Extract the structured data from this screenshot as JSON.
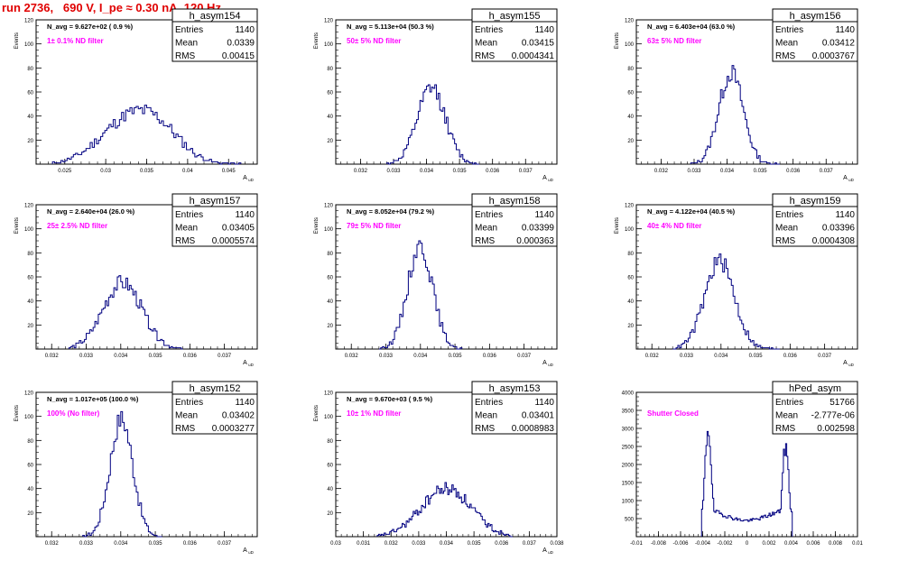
{
  "page_title": "run 2736,   690 V, I_pe ≈ 0.30 nA, 120 Hz",
  "colors": {
    "histogram": "#000080",
    "annotation": "#ff00ff",
    "title": "#e00000",
    "frame": "#000000"
  },
  "chart_data": [
    {
      "type": "bar",
      "name": "h_asym154",
      "title": "N_avg = 9.627e+02 ( 0.9 %)",
      "annotation": "1± 0.1% ND filter",
      "xlabel": "A_{uD}",
      "ylabel": "Events",
      "stats": {
        "entries_label": "Entries",
        "entries": "1140",
        "mean_label": "Mean",
        "mean": "0.0339",
        "rms_label": "RMS",
        "rms": "0.00415"
      },
      "xlim": [
        0.0215,
        0.0485
      ],
      "ylim": [
        0,
        120
      ],
      "xticks": [
        "0.025",
        "0.03",
        "0.035",
        "0.04",
        "0.045"
      ],
      "xtick_values": [
        0.025,
        0.03,
        0.035,
        0.04,
        0.045
      ],
      "yticks": [
        "20",
        "40",
        "60",
        "80",
        "100",
        "120"
      ],
      "ytick_values": [
        20,
        40,
        60,
        80,
        100,
        120
      ],
      "peaks": [
        [
          0.0325,
          0.0035,
          32
        ],
        [
          0.0365,
          0.003,
          22
        ]
      ],
      "range": [
        0.0235,
        0.0465
      ],
      "nbins": 90,
      "seed": 11
    },
    {
      "type": "bar",
      "name": "h_asym155",
      "title": "N_avg = 5.113e+04 (50.3 %)",
      "annotation": "50± 5% ND filter",
      "xlabel": "A_{uD}",
      "ylabel": "Events",
      "stats": {
        "entries_label": "Entries",
        "entries": "1140",
        "mean_label": "Mean",
        "mean": "0.03415",
        "rms_label": "RMS",
        "rms": "0.0004341"
      },
      "xlim": [
        0.03125,
        0.03795
      ],
      "ylim": [
        0,
        120
      ],
      "xticks": [
        "0.032",
        "0.033",
        "0.034",
        "0.035",
        "0.036",
        "0.037"
      ],
      "xtick_values": [
        0.032,
        0.033,
        0.034,
        0.035,
        0.036,
        0.037
      ],
      "yticks": [
        "20",
        "40",
        "60",
        "80",
        "100",
        "120"
      ],
      "ytick_values": [
        20,
        40,
        60,
        80,
        100,
        120
      ],
      "peaks": [
        [
          0.03415,
          0.00043,
          63
        ]
      ],
      "range": [
        0.0328,
        0.0356
      ],
      "nbins": 56,
      "seed": 12
    },
    {
      "type": "bar",
      "name": "h_asym156",
      "title": "N_avg = 6.403e+04 (63.0 %)",
      "annotation": "63± 5% ND filter",
      "xlabel": "A_{uD}",
      "ylabel": "Events",
      "stats": {
        "entries_label": "Entries",
        "entries": "1140",
        "mean_label": "Mean",
        "mean": "0.03412",
        "rms_label": "RMS",
        "rms": "0.0003767"
      },
      "xlim": [
        0.03125,
        0.03795
      ],
      "ylim": [
        0,
        120
      ],
      "xticks": [
        "0.032",
        "0.033",
        "0.034",
        "0.035",
        "0.036",
        "0.037"
      ],
      "xtick_values": [
        0.032,
        0.033,
        0.034,
        0.035,
        0.036,
        0.037
      ],
      "yticks": [
        "20",
        "40",
        "60",
        "80",
        "100",
        "120"
      ],
      "ytick_values": [
        20,
        40,
        60,
        80,
        100,
        120
      ],
      "peaks": [
        [
          0.03412,
          0.00037,
          76
        ]
      ],
      "range": [
        0.0329,
        0.0356
      ],
      "nbins": 54,
      "seed": 13
    },
    {
      "type": "bar",
      "name": "h_asym157",
      "title": "N_avg = 2.640e+04 (26.0 %)",
      "annotation": "25± 2.5% ND filter",
      "xlabel": "A_{uD}",
      "ylabel": "Events",
      "stats": {
        "entries_label": "Entries",
        "entries": "1140",
        "mean_label": "Mean",
        "mean": "0.03405",
        "rms_label": "RMS",
        "rms": "0.0005574"
      },
      "xlim": [
        0.03155,
        0.03795
      ],
      "ylim": [
        0,
        120
      ],
      "xticks": [
        "0.032",
        "0.033",
        "0.034",
        "0.035",
        "0.036",
        "0.037"
      ],
      "xtick_values": [
        0.032,
        0.033,
        0.034,
        0.035,
        0.036,
        0.037
      ],
      "yticks": [
        "20",
        "40",
        "60",
        "80",
        "100",
        "120"
      ],
      "ytick_values": [
        20,
        40,
        60,
        80,
        100,
        120
      ],
      "peaks": [
        [
          0.03405,
          0.00056,
          55
        ]
      ],
      "range": [
        0.0325,
        0.0358
      ],
      "nbins": 66,
      "seed": 14
    },
    {
      "type": "bar",
      "name": "h_asym158",
      "title": "N_avg = 8.052e+04 (79.2 %)",
      "annotation": "79± 5% ND filter",
      "xlabel": "A_{uD}",
      "ylabel": "Events",
      "stats": {
        "entries_label": "Entries",
        "entries": "1140",
        "mean_label": "Mean",
        "mean": "0.03399",
        "rms_label": "RMS",
        "rms": "0.000363"
      },
      "xlim": [
        0.03155,
        0.03795
      ],
      "ylim": [
        0,
        120
      ],
      "xticks": [
        "0.032",
        "0.033",
        "0.034",
        "0.035",
        "0.036",
        "0.037"
      ],
      "xtick_values": [
        0.032,
        0.033,
        0.034,
        0.035,
        0.036,
        0.037
      ],
      "yticks": [
        "20",
        "40",
        "60",
        "80",
        "100",
        "120"
      ],
      "ytick_values": [
        20,
        40,
        60,
        80,
        100,
        120
      ],
      "peaks": [
        [
          0.03399,
          0.00036,
          86
        ]
      ],
      "range": [
        0.0328,
        0.0352
      ],
      "nbins": 48,
      "seed": 15
    },
    {
      "type": "bar",
      "name": "h_asym159",
      "title": "N_avg = 4.122e+04 (40.5 %)",
      "annotation": "40± 4% ND filter",
      "xlabel": "A_{uD}",
      "ylabel": "Events",
      "stats": {
        "entries_label": "Entries",
        "entries": "1140",
        "mean_label": "Mean",
        "mean": "0.03396",
        "rms_label": "RMS",
        "rms": "0.0004308"
      },
      "xlim": [
        0.03155,
        0.03795
      ],
      "ylim": [
        0,
        120
      ],
      "xticks": [
        "0.032",
        "0.033",
        "0.034",
        "0.035",
        "0.036",
        "0.037"
      ],
      "xtick_values": [
        0.032,
        0.033,
        0.034,
        0.035,
        0.036,
        0.037
      ],
      "yticks": [
        "20",
        "40",
        "60",
        "80",
        "100",
        "120"
      ],
      "ytick_values": [
        20,
        40,
        60,
        80,
        100,
        120
      ],
      "peaks": [
        [
          0.03396,
          0.00043,
          73
        ]
      ],
      "range": [
        0.0326,
        0.0357
      ],
      "nbins": 62,
      "seed": 16
    },
    {
      "type": "bar",
      "name": "h_asym152",
      "title": "N_avg = 1.017e+05 (100.0 %)",
      "annotation": "100% (No filter)",
      "xlabel": "A_{uD}",
      "ylabel": "Events",
      "stats": {
        "entries_label": "Entries",
        "entries": "1140",
        "mean_label": "Mean",
        "mean": "0.03402",
        "rms_label": "RMS",
        "rms": "0.0003277"
      },
      "xlim": [
        0.03155,
        0.03795
      ],
      "ylim": [
        0,
        120
      ],
      "xticks": [
        "0.032",
        "0.033",
        "0.034",
        "0.035",
        "0.036",
        "0.037"
      ],
      "xtick_values": [
        0.032,
        0.033,
        0.034,
        0.035,
        0.036,
        0.037
      ],
      "yticks": [
        "20",
        "40",
        "60",
        "80",
        "100",
        "120"
      ],
      "ytick_values": [
        20,
        40,
        60,
        80,
        100,
        120
      ],
      "peaks": [
        [
          0.03402,
          0.00033,
          98
        ]
      ],
      "range": [
        0.0329,
        0.0352
      ],
      "nbins": 46,
      "seed": 17
    },
    {
      "type": "bar",
      "name": "h_asym153",
      "title": "N_avg = 9.670e+03 ( 9.5 %)",
      "annotation": "10± 1% ND filter",
      "xlabel": "A_{uD}",
      "ylabel": "Events",
      "stats": {
        "entries_label": "Entries",
        "entries": "1140",
        "mean_label": "Mean",
        "mean": "0.03401",
        "rms_label": "RMS",
        "rms": "0.0008983"
      },
      "xlim": [
        0.03,
        0.038
      ],
      "ylim": [
        0,
        120
      ],
      "xticks": [
        "0.03",
        "0.031",
        "0.032",
        "0.033",
        "0.034",
        "0.035",
        "0.036",
        "0.037",
        "0.038"
      ],
      "xtick_values": [
        0.03,
        0.031,
        0.032,
        0.033,
        0.034,
        0.035,
        0.036,
        0.037,
        0.038
      ],
      "yticks": [
        "20",
        "40",
        "60",
        "80",
        "100",
        "120"
      ],
      "ytick_values": [
        20,
        40,
        60,
        80,
        100,
        120
      ],
      "peaks": [
        [
          0.034,
          0.0009,
          40
        ]
      ],
      "range": [
        0.0315,
        0.0364
      ],
      "nbins": 98,
      "seed": 18
    },
    {
      "type": "bar",
      "name": "hPed_asym",
      "title": "",
      "annotation": "Shutter Closed",
      "xlabel": "",
      "ylabel": "",
      "stats": {
        "entries_label": "Entries",
        "entries": "51766",
        "mean_label": "Mean",
        "mean": "-2.777e-06",
        "rms_label": "RMS",
        "rms": "0.002598"
      },
      "xlim": [
        -0.01,
        0.01
      ],
      "ylim": [
        0,
        4000
      ],
      "xticks": [
        "-0.01",
        "-0.008",
        "-0.006",
        "-0.004",
        "-0.002",
        "0",
        "0.002",
        "0.004",
        "0.006",
        "0.008",
        "0.01"
      ],
      "xtick_values": [
        -0.01,
        -0.008,
        -0.006,
        -0.004,
        -0.002,
        0,
        0.002,
        0.004,
        0.006,
        0.008,
        0.01
      ],
      "yticks": [
        "500",
        "1000",
        "1500",
        "2000",
        "2500",
        "3000",
        "3500",
        "4000"
      ],
      "ytick_values": [
        500,
        1000,
        1500,
        2000,
        2500,
        3000,
        3500,
        4000
      ],
      "peaks": [
        [
          -0.0035,
          0.0003,
          3000
        ],
        [
          0.0035,
          0.0003,
          2500
        ]
      ],
      "floor": 600,
      "range": [
        -0.0041,
        0.0041
      ],
      "nbins": 82,
      "seed": 19
    }
  ]
}
